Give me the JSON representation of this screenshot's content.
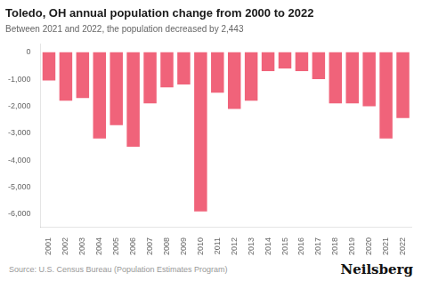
{
  "chart_data": {
    "type": "bar",
    "title": "Toledo, OH annual population change from 2000 to 2022",
    "subtitle": "Between 2021 and 2022, the population decreased by 2,443",
    "source": "Source: U.S. Census Bureau (Population Estimates Program)",
    "brand": "Neilsberg",
    "categories": [
      "2001",
      "2002",
      "2003",
      "2004",
      "2005",
      "2006",
      "2007",
      "2008",
      "2009",
      "2010",
      "2011",
      "2012",
      "2013",
      "2014",
      "2015",
      "2016",
      "2017",
      "2018",
      "2019",
      "2020",
      "2021",
      "2022"
    ],
    "values": [
      -1050,
      -1800,
      -1700,
      -3200,
      -2700,
      -3500,
      -1900,
      -1300,
      -1200,
      -5900,
      -1500,
      -2100,
      -1800,
      -700,
      -600,
      -700,
      -1000,
      -1900,
      -1900,
      -2000,
      -3200,
      -2443
    ],
    "color": "#f0637a",
    "ylim": [
      -6500,
      300
    ],
    "yticks": [
      0,
      {
        "value": -1000,
        "label": "-1,000"
      },
      {
        "value": -2000,
        "label": "-2,000"
      },
      {
        "value": -3000,
        "label": "-3,000"
      },
      {
        "value": -4000,
        "label": "-4,000"
      },
      {
        "value": -5000,
        "label": "-5,000"
      },
      {
        "value": -6000,
        "label": "-6,000"
      }
    ],
    "grid": false
  }
}
